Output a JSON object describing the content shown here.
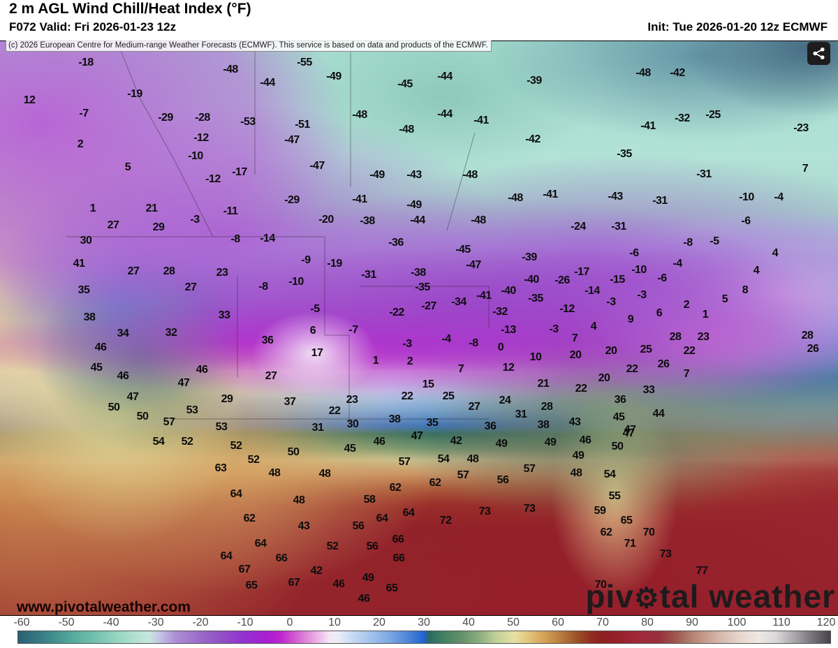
{
  "header": {
    "title": "2 m AGL Wind Chill/Heat Index (°F)",
    "valid": "F072 Valid: Fri 2026-01-23 12z",
    "init": "Init: Tue 2026-01-20 12z ECMWF"
  },
  "copyright": "(c) 2026 European Centre for Medium-range Weather Forecasts (ECMWF). This service is based on data and products of the ECMWF.",
  "watermark": "www.pivotalweather.com",
  "logo": {
    "pre": "piv",
    "gear": "⚙",
    "post": "tal weather"
  },
  "share_button": {
    "icon": "share-icon"
  },
  "colorbar": {
    "unit": "°F",
    "range": [
      -60,
      120
    ],
    "ticks": [
      -60,
      -50,
      -40,
      -30,
      -20,
      -10,
      0,
      10,
      20,
      30,
      40,
      50,
      60,
      70,
      80,
      90,
      100,
      110,
      120
    ],
    "stops": [
      {
        "t": -60,
        "c": "#2b5f72"
      },
      {
        "t": -54,
        "c": "#3a8288"
      },
      {
        "t": -48,
        "c": "#55aa9b"
      },
      {
        "t": -42,
        "c": "#79c5b1"
      },
      {
        "t": -36,
        "c": "#a5dcca"
      },
      {
        "t": -31,
        "c": "#c6e6dc"
      },
      {
        "t": -29,
        "c": "#c9c8e6"
      },
      {
        "t": -25,
        "c": "#ab8ed4"
      },
      {
        "t": -20,
        "c": "#9c6cca"
      },
      {
        "t": -15,
        "c": "#9150c6"
      },
      {
        "t": -10,
        "c": "#9232cf"
      },
      {
        "t": -5,
        "c": "#a81ed2"
      },
      {
        "t": -2,
        "c": "#bc25cd"
      },
      {
        "t": 1,
        "c": "#d054cf"
      },
      {
        "t": 4,
        "c": "#e18ad9"
      },
      {
        "t": 7,
        "c": "#f0bfeb"
      },
      {
        "t": 9,
        "c": "#f6e6f6"
      },
      {
        "t": 11,
        "c": "#e9edf9"
      },
      {
        "t": 14,
        "c": "#c9daf3"
      },
      {
        "t": 18,
        "c": "#a4c4ec"
      },
      {
        "t": 22,
        "c": "#7fa9e2"
      },
      {
        "t": 26,
        "c": "#5488d8"
      },
      {
        "t": 30,
        "c": "#1f63d4"
      },
      {
        "t": 31,
        "c": "#2a6a60"
      },
      {
        "t": 34,
        "c": "#3f7f63"
      },
      {
        "t": 38,
        "c": "#628f68"
      },
      {
        "t": 42,
        "c": "#8aab7d"
      },
      {
        "t": 46,
        "c": "#c2d098"
      },
      {
        "t": 50,
        "c": "#e6e0a4"
      },
      {
        "t": 53,
        "c": "#e3c57c"
      },
      {
        "t": 57,
        "c": "#d19e54"
      },
      {
        "t": 61,
        "c": "#b2743a"
      },
      {
        "t": 64,
        "c": "#9d4f28"
      },
      {
        "t": 67,
        "c": "#8f2d1f"
      },
      {
        "t": 70,
        "c": "#8e1f22"
      },
      {
        "t": 74,
        "c": "#99222e"
      },
      {
        "t": 78,
        "c": "#a12a3a"
      },
      {
        "t": 82,
        "c": "#97303c"
      },
      {
        "t": 86,
        "c": "#9f5a50"
      },
      {
        "t": 90,
        "c": "#b98877"
      },
      {
        "t": 95,
        "c": "#d3b4a6"
      },
      {
        "t": 100,
        "c": "#e7d5cc"
      },
      {
        "t": 104,
        "c": "#efe8e4"
      },
      {
        "t": 108,
        "c": "#d9d7da"
      },
      {
        "t": 112,
        "c": "#a9a6ac"
      },
      {
        "t": 116,
        "c": "#76737a"
      },
      {
        "t": 120,
        "c": "#46444a"
      }
    ]
  },
  "map": {
    "palette": {
      "arctic_teal": "#a4dbce",
      "purple_band": "#a04cc8",
      "magenta_core": "#bb22cf",
      "snow_band": "#efd7ee",
      "cool_blue": "#3a70c8",
      "warm_gulf": "#8e1f28",
      "pacific_khaki": "#e3dca3"
    },
    "labels": [
      [
        -18,
        123,
        90
      ],
      [
        12,
        42,
        144
      ],
      [
        -19,
        193,
        135
      ],
      [
        -7,
        120,
        163
      ],
      [
        -29,
        237,
        169
      ],
      [
        -28,
        290,
        169
      ],
      [
        -48,
        330,
        100
      ],
      [
        -44,
        383,
        119
      ],
      [
        -53,
        355,
        175
      ],
      [
        2,
        115,
        207
      ],
      [
        -12,
        288,
        198
      ],
      [
        -10,
        280,
        224
      ],
      [
        5,
        183,
        240
      ],
      [
        -17,
        343,
        247
      ],
      [
        -12,
        305,
        257
      ],
      [
        21,
        217,
        299
      ],
      [
        -3,
        279,
        315
      ],
      [
        -11,
        330,
        303
      ],
      [
        27,
        162,
        323
      ],
      [
        29,
        227,
        326
      ],
      [
        1,
        133,
        299
      ],
      [
        -55,
        436,
        90
      ],
      [
        -49,
        478,
        110
      ],
      [
        -45,
        580,
        121
      ],
      [
        -44,
        637,
        110
      ],
      [
        -39,
        765,
        116
      ],
      [
        -48,
        515,
        165
      ],
      [
        -44,
        637,
        164
      ],
      [
        -41,
        689,
        173
      ],
      [
        -51,
        433,
        179
      ],
      [
        -47,
        418,
        201
      ],
      [
        -48,
        582,
        186
      ],
      [
        -42,
        763,
        200
      ],
      [
        -47,
        454,
        238
      ],
      [
        -49,
        540,
        251
      ],
      [
        -43,
        593,
        251
      ],
      [
        -48,
        673,
        251
      ],
      [
        -29,
        418,
        287
      ],
      [
        -41,
        515,
        286
      ],
      [
        -49,
        593,
        294
      ],
      [
        -41,
        788,
        279
      ],
      [
        -48,
        738,
        284
      ],
      [
        -20,
        467,
        315
      ],
      [
        -38,
        526,
        317
      ],
      [
        -44,
        598,
        316
      ],
      [
        -48,
        685,
        316
      ],
      [
        -48,
        921,
        105
      ],
      [
        -42,
        970,
        105
      ],
      [
        -25,
        1021,
        165
      ],
      [
        -32,
        977,
        170
      ],
      [
        -23,
        1147,
        184
      ],
      [
        -41,
        928,
        181
      ],
      [
        -35,
        894,
        221
      ],
      [
        -31,
        1008,
        250
      ],
      [
        7,
        1153,
        242
      ],
      [
        -43,
        881,
        282
      ],
      [
        -31,
        945,
        288
      ],
      [
        -10,
        1069,
        283
      ],
      [
        -4,
        1115,
        283
      ],
      [
        -31,
        886,
        325
      ],
      [
        -24,
        828,
        325
      ],
      [
        -6,
        1068,
        317
      ],
      [
        30,
        123,
        345
      ],
      [
        41,
        113,
        378
      ],
      [
        27,
        191,
        389
      ],
      [
        28,
        242,
        389
      ],
      [
        23,
        318,
        391
      ],
      [
        -8,
        337,
        343
      ],
      [
        -14,
        383,
        342
      ],
      [
        35,
        120,
        416
      ],
      [
        27,
        273,
        412
      ],
      [
        -8,
        377,
        411
      ],
      [
        38,
        128,
        455
      ],
      [
        33,
        321,
        452
      ],
      [
        34,
        176,
        478
      ],
      [
        32,
        245,
        477
      ],
      [
        36,
        383,
        488
      ],
      [
        46,
        144,
        498
      ],
      [
        45,
        138,
        527
      ],
      [
        46,
        176,
        539
      ],
      [
        46,
        289,
        530
      ],
      [
        27,
        388,
        539
      ],
      [
        47,
        263,
        549
      ],
      [
        47,
        190,
        569
      ],
      [
        29,
        325,
        572
      ],
      [
        50,
        163,
        584
      ],
      [
        50,
        204,
        597
      ],
      [
        53,
        275,
        588
      ],
      [
        57,
        242,
        605
      ],
      [
        53,
        317,
        612
      ],
      [
        -36,
        567,
        348
      ],
      [
        -45,
        663,
        358
      ],
      [
        -9,
        438,
        373
      ],
      [
        -19,
        479,
        378
      ],
      [
        -31,
        528,
        394
      ],
      [
        -38,
        599,
        391
      ],
      [
        -47,
        678,
        380
      ],
      [
        -39,
        758,
        369
      ],
      [
        -10,
        424,
        404
      ],
      [
        -35,
        605,
        412
      ],
      [
        -40,
        761,
        401
      ],
      [
        -40,
        728,
        417
      ],
      [
        -41,
        693,
        424
      ],
      [
        -34,
        657,
        433
      ],
      [
        -35,
        767,
        428
      ],
      [
        -27,
        614,
        439
      ],
      [
        -5,
        451,
        443
      ],
      [
        -22,
        568,
        448
      ],
      [
        -32,
        716,
        447
      ],
      [
        6,
        448,
        474
      ],
      [
        -7,
        506,
        473
      ],
      [
        -13,
        728,
        473
      ],
      [
        -3,
        793,
        472
      ],
      [
        -4,
        639,
        486
      ],
      [
        -8,
        678,
        492
      ],
      [
        -3,
        583,
        493
      ],
      [
        0,
        717,
        498
      ],
      [
        17,
        454,
        506
      ],
      [
        1,
        538,
        517
      ],
      [
        2,
        587,
        518
      ],
      [
        10,
        767,
        512
      ],
      [
        7,
        660,
        529
      ],
      [
        12,
        728,
        527
      ],
      [
        15,
        613,
        551
      ],
      [
        21,
        778,
        550
      ],
      [
        22,
        583,
        568
      ],
      [
        25,
        642,
        568
      ],
      [
        23,
        504,
        573
      ],
      [
        27,
        679,
        583
      ],
      [
        24,
        723,
        574
      ],
      [
        28,
        783,
        583
      ],
      [
        22,
        479,
        589
      ],
      [
        37,
        415,
        576
      ],
      [
        31,
        746,
        594
      ],
      [
        38,
        565,
        601
      ],
      [
        35,
        619,
        606
      ],
      [
        30,
        505,
        608
      ],
      [
        31,
        455,
        613
      ],
      [
        36,
        702,
        611
      ],
      [
        38,
        778,
        609
      ],
      [
        -8,
        985,
        348
      ],
      [
        -5,
        1023,
        346
      ],
      [
        -6,
        908,
        363
      ],
      [
        -17,
        833,
        390
      ],
      [
        -26,
        805,
        402
      ],
      [
        -10,
        915,
        387
      ],
      [
        -15,
        884,
        401
      ],
      [
        -14,
        848,
        417
      ],
      [
        -6,
        948,
        399
      ],
      [
        -4,
        970,
        378
      ],
      [
        8,
        1067,
        416
      ],
      [
        4,
        1110,
        363
      ],
      [
        4,
        1083,
        388
      ],
      [
        -3,
        919,
        423
      ],
      [
        -3,
        875,
        433
      ],
      [
        2,
        983,
        437
      ],
      [
        5,
        1038,
        429
      ],
      [
        -12,
        812,
        443
      ],
      [
        9,
        903,
        458
      ],
      [
        6,
        944,
        449
      ],
      [
        4,
        850,
        468
      ],
      [
        1,
        1010,
        451
      ],
      [
        7,
        823,
        485
      ],
      [
        20,
        824,
        509
      ],
      [
        20,
        875,
        503
      ],
      [
        25,
        925,
        501
      ],
      [
        28,
        967,
        483
      ],
      [
        23,
        1007,
        483
      ],
      [
        22,
        987,
        503
      ],
      [
        26,
        950,
        522
      ],
      [
        22,
        905,
        529
      ],
      [
        20,
        865,
        542
      ],
      [
        22,
        832,
        557
      ],
      [
        33,
        929,
        559
      ],
      [
        36,
        888,
        573
      ],
      [
        7,
        983,
        536
      ],
      [
        28,
        1156,
        481
      ],
      [
        26,
        1164,
        500
      ],
      [
        54,
        227,
        633
      ],
      [
        52,
        268,
        633
      ],
      [
        52,
        338,
        639
      ],
      [
        52,
        363,
        659
      ],
      [
        63,
        316,
        671
      ],
      [
        48,
        393,
        678
      ],
      [
        64,
        338,
        708
      ],
      [
        62,
        357,
        743
      ],
      [
        64,
        373,
        779
      ],
      [
        64,
        324,
        797
      ],
      [
        67,
        350,
        816
      ],
      [
        65,
        360,
        839
      ],
      [
        47,
        597,
        625
      ],
      [
        46,
        543,
        633
      ],
      [
        45,
        501,
        643
      ],
      [
        42,
        653,
        632
      ],
      [
        49,
        718,
        636
      ],
      [
        49,
        788,
        634
      ],
      [
        50,
        420,
        648
      ],
      [
        54,
        635,
        658
      ],
      [
        48,
        677,
        658
      ],
      [
        57,
        579,
        662
      ],
      [
        57,
        663,
        681
      ],
      [
        57,
        758,
        672
      ],
      [
        56,
        720,
        688
      ],
      [
        48,
        465,
        679
      ],
      [
        62,
        623,
        692
      ],
      [
        62,
        566,
        699
      ],
      [
        58,
        529,
        716
      ],
      [
        48,
        428,
        717
      ],
      [
        73,
        694,
        733
      ],
      [
        73,
        758,
        729
      ],
      [
        72,
        638,
        746
      ],
      [
        64,
        585,
        735
      ],
      [
        64,
        547,
        743
      ],
      [
        43,
        435,
        754
      ],
      [
        56,
        513,
        754
      ],
      [
        66,
        570,
        773
      ],
      [
        52,
        476,
        783
      ],
      [
        56,
        533,
        783
      ],
      [
        66,
        571,
        800
      ],
      [
        66,
        403,
        800
      ],
      [
        42,
        453,
        818
      ],
      [
        67,
        421,
        835
      ],
      [
        46,
        485,
        837
      ],
      [
        49,
        527,
        828
      ],
      [
        65,
        561,
        843
      ],
      [
        46,
        521,
        858
      ],
      [
        43,
        823,
        605
      ],
      [
        45,
        886,
        598
      ],
      [
        44,
        943,
        593
      ],
      [
        47,
        902,
        616
      ],
      [
        46,
        838,
        631
      ],
      [
        47,
        900,
        621
      ],
      [
        50,
        884,
        640
      ],
      [
        49,
        828,
        653
      ],
      [
        48,
        825,
        678
      ],
      [
        54,
        873,
        680
      ],
      [
        55,
        880,
        711
      ],
      [
        59,
        859,
        732
      ],
      [
        65,
        897,
        746
      ],
      [
        62,
        868,
        763
      ],
      [
        70,
        929,
        763
      ],
      [
        71,
        902,
        779
      ],
      [
        73,
        953,
        794
      ],
      [
        77,
        1005,
        818
      ],
      [
        70,
        860,
        838
      ]
    ]
  }
}
